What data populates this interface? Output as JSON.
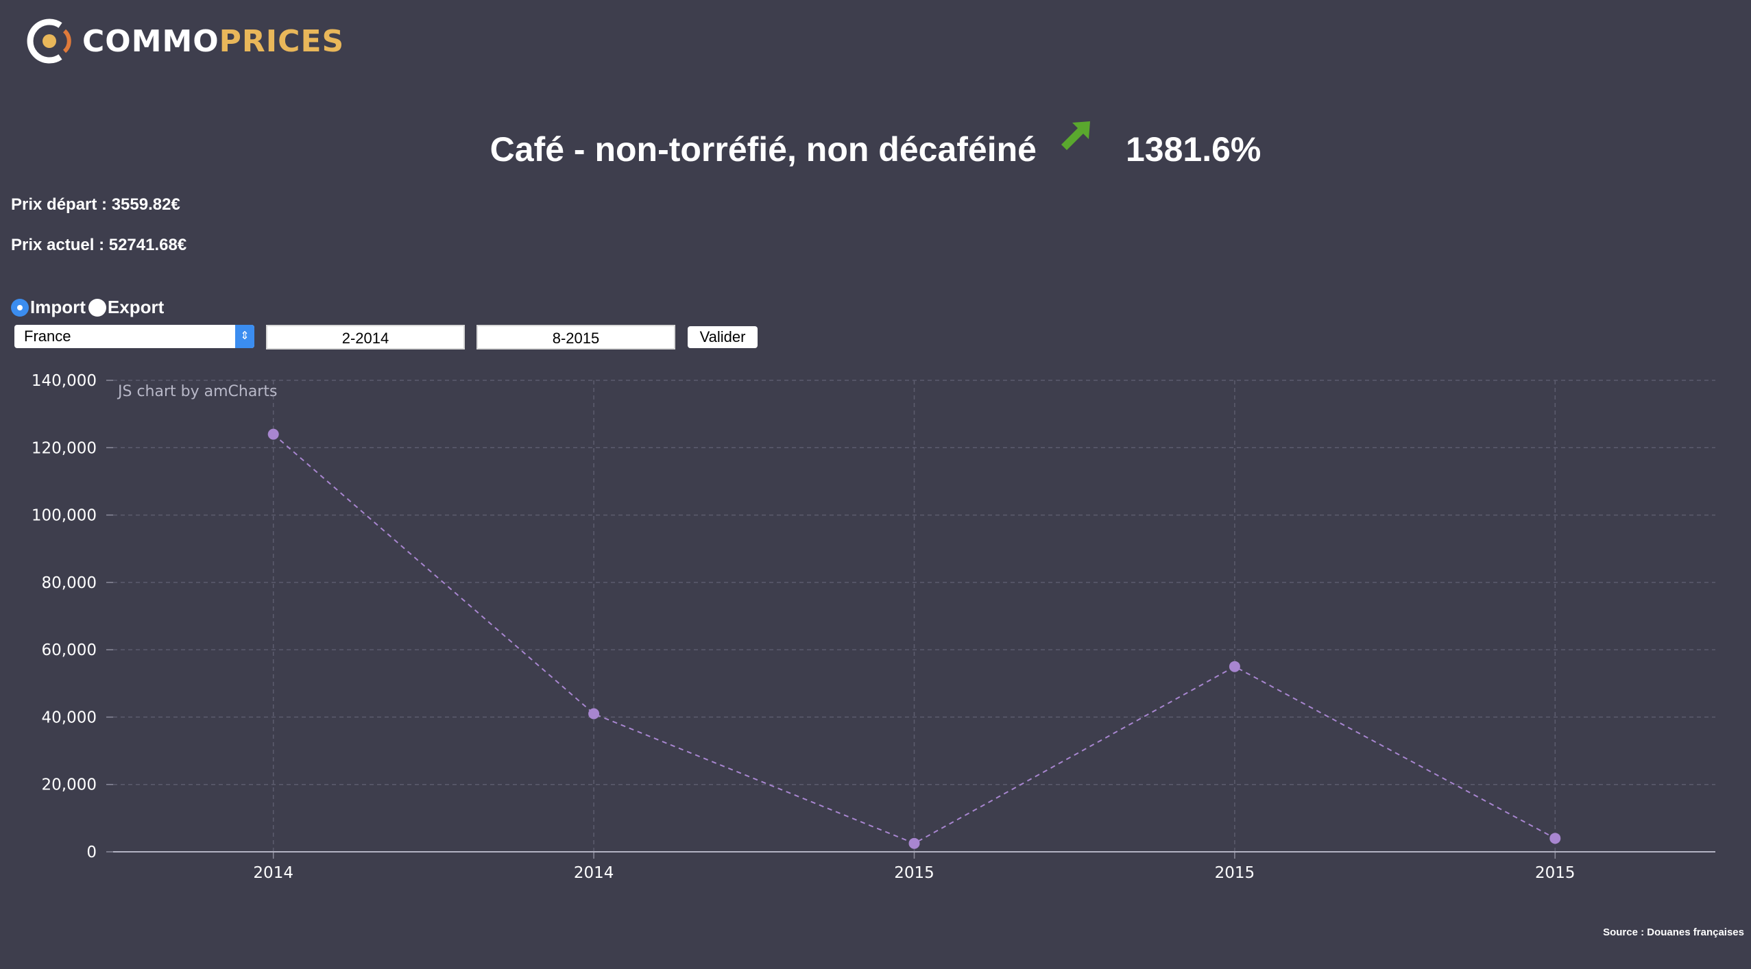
{
  "brand": {
    "part1": "COMMO",
    "part2": "PRICES"
  },
  "header": {
    "title": "Café - non-torréfié, non décaféiné",
    "change_pct": "1381.6%",
    "trend_icon": "arrow-up-right-icon",
    "trend_color": "#5aa82e"
  },
  "prices": {
    "start": "Prix départ : 3559.82€",
    "current": "Prix actuel : 52741.68€"
  },
  "form": {
    "import_label": "Import",
    "export_label": "Export",
    "selected_flow": "Import",
    "country": "France",
    "start_date": "2-2014",
    "end_date": "8-2015",
    "submit_label": "Valider"
  },
  "chart_data": {
    "type": "line",
    "credit": "JS chart by amCharts",
    "categories": [
      "2014",
      "2014",
      "2015",
      "2015",
      "2015"
    ],
    "values": [
      124000,
      41000,
      2500,
      55000,
      4000
    ],
    "ylim": [
      0,
      140000
    ],
    "yticks": [
      "0",
      "20,000",
      "40,000",
      "60,000",
      "80,000",
      "100,000",
      "120,000",
      "140,000"
    ],
    "ytick_values": [
      0,
      20000,
      40000,
      60000,
      80000,
      100000,
      120000,
      140000
    ],
    "grid": true,
    "line_style": "dashed",
    "series_color": "#a886d0"
  },
  "footer": {
    "source": "Source : Douanes françaises"
  }
}
